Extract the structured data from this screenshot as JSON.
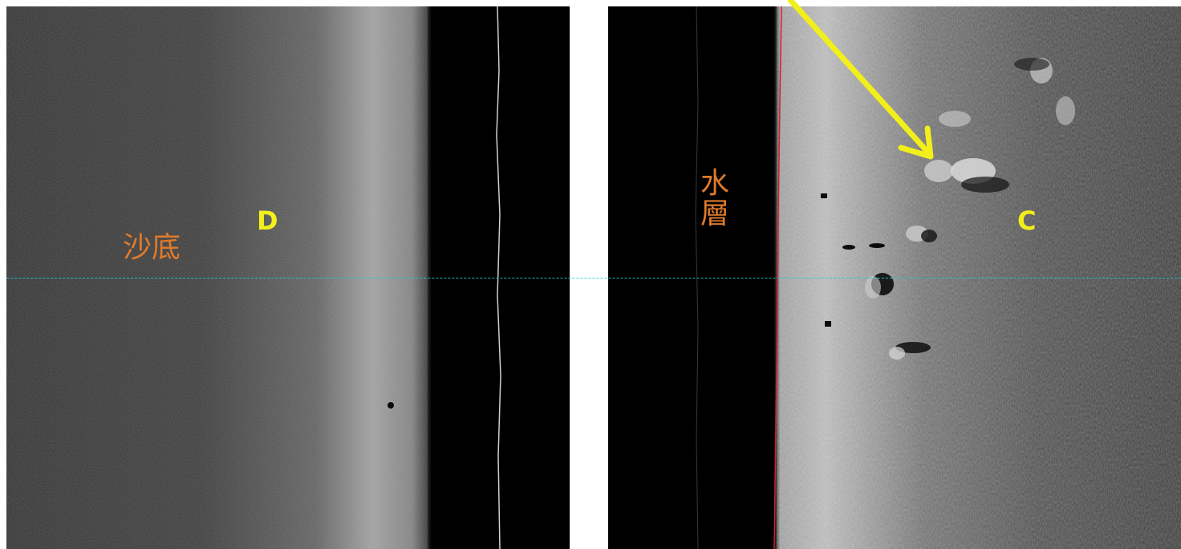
{
  "labels": {
    "sand_bottom": "沙底",
    "water_layer": "水層",
    "target_d": "D",
    "target_c": "C"
  },
  "colors": {
    "label_orange": "#e07a2a",
    "marker_yellow": "#f2ef1a",
    "scanline_cyan": "#22c8d8",
    "nadir_red": "#d81e2a",
    "water_column_black": "#000000"
  }
}
